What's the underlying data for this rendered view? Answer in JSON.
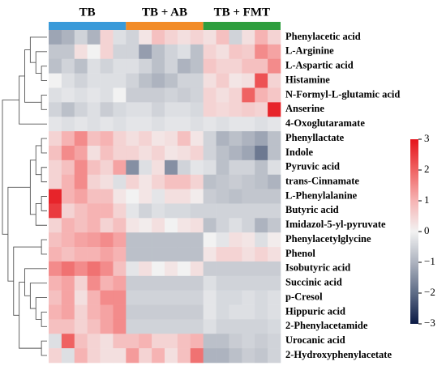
{
  "chart_data": {
    "type": "heatmap",
    "groups": [
      {
        "name": "TB",
        "color": "#3a9ad9"
      },
      {
        "name": "TB + AB",
        "color": "#f28c28"
      },
      {
        "name": "TB + FMT",
        "color": "#2e9e3e"
      }
    ],
    "rows": [
      "Phenylacetic acid",
      "L-Arginine",
      "L-Aspartic acid",
      "Histamine",
      "N-Formyl-L-glutamic acid",
      "Anserine",
      "4-Oxoglutaramate",
      "Phenyllactate",
      "Indole",
      "Pyruvic acid",
      "trans-Cinnamate",
      "L-Phenylalanine",
      "Butyric acid",
      "Imidazol-5-yl-pyruvate",
      "Phenylacetylglycine",
      "Phenol",
      "Isobutyric acid",
      "Succinic acid",
      "p-Cresol",
      "Hippuric acid",
      "2-Phenylacetamide",
      "Urocanic acid",
      "2-Hydroxyphenylacetate"
    ],
    "values": [
      [
        -1.2,
        -1,
        -0.5,
        -1,
        0.5,
        -0.3,
        -0.5,
        0.2,
        0.8,
        0.5,
        0.3,
        0.5,
        0.3,
        0.8,
        -0.5,
        0.3,
        1,
        0.5
      ],
      [
        -0.7,
        -0.7,
        0.3,
        0,
        0.5,
        -0.5,
        -0.5,
        -1.3,
        -0.8,
        -0.5,
        -0.3,
        -0.8,
        0.5,
        0.3,
        0.7,
        0.6,
        1.5,
        1.2
      ],
      [
        -0.8,
        -0.5,
        -0.8,
        -0.3,
        -0.5,
        -0.3,
        -0.3,
        -0.5,
        -0.8,
        -0.5,
        -1,
        -0.8,
        0.7,
        0.5,
        0.5,
        0.8,
        0.8,
        1.5
      ],
      [
        0,
        -0.3,
        -0.5,
        -0.3,
        -0.3,
        -0.3,
        -0.5,
        -0.8,
        -1,
        -0.8,
        -0.5,
        -0.5,
        0.3,
        0.6,
        0.2,
        0.3,
        2.2,
        0.5
      ],
      [
        -0.3,
        -0.2,
        -0.3,
        -0.2,
        -0.3,
        0,
        -0.6,
        -0.6,
        -0.6,
        -0.5,
        -0.6,
        -0.5,
        0.5,
        0.3,
        0.5,
        2,
        1,
        0.7
      ],
      [
        -0.5,
        -0.8,
        -0.5,
        -0.3,
        -0.6,
        -0.4,
        -0.3,
        -0.3,
        -0.5,
        -0.3,
        -0.3,
        -0.4,
        0.5,
        0.4,
        0.5,
        0.6,
        0.5,
        2.8
      ],
      [
        -0.2,
        -0.3,
        -0.2,
        -0.3,
        -0.2,
        -0.3,
        -0.2,
        -0.2,
        -0.3,
        -0.2,
        -0.2,
        -0.3,
        -0.2,
        -0.3,
        -0.2,
        -0.2,
        -0.3,
        -0.2
      ],
      [
        0.5,
        1,
        1.5,
        0.8,
        1,
        0.5,
        0.3,
        0.5,
        0.2,
        0.3,
        0.8,
        0.2,
        -0.5,
        -1,
        -0.8,
        -1,
        -1.2,
        -0.8
      ],
      [
        0.8,
        1.5,
        1.2,
        0.3,
        0.8,
        0.5,
        0.5,
        0.3,
        0.5,
        0.2,
        0.3,
        0.5,
        -0.5,
        -0.8,
        -1,
        -1.2,
        -1.8,
        -0.8
      ],
      [
        0.5,
        0.8,
        1.5,
        0.8,
        0.5,
        1.2,
        -1.5,
        -0.3,
        0.3,
        -1.5,
        -0.5,
        -0.2,
        -0.3,
        -0.8,
        -0.5,
        -0.5,
        -0.8,
        -0.3
      ],
      [
        0.5,
        1,
        1.5,
        0.5,
        0.3,
        -0.3,
        0.5,
        0.2,
        0.5,
        0.8,
        0.8,
        0.5,
        -0.8,
        -0.7,
        -0.6,
        -0.7,
        -0.8,
        -1
      ],
      [
        2.8,
        1,
        1.2,
        0.8,
        0.8,
        0.2,
        0,
        0.2,
        -0.2,
        0.3,
        0.3,
        0.1,
        -0.6,
        -0.7,
        -0.8,
        -0.7,
        -0.7,
        -0.7
      ],
      [
        2.5,
        0.5,
        0.8,
        1,
        1,
        0.5,
        -0.2,
        -0.5,
        -0.3,
        -0.4,
        -0.4,
        -0.5,
        -0.5,
        -0.5,
        -0.5,
        -0.5,
        -0.5,
        -0.5
      ],
      [
        0.5,
        1,
        0.8,
        1,
        0.5,
        0.8,
        0.2,
        0.1,
        0.3,
        0,
        0.2,
        0.3,
        -0.8,
        -0.5,
        -0.3,
        -0.5,
        -1,
        -0.7
      ],
      [
        0.8,
        1,
        1.2,
        1.3,
        1.5,
        1.2,
        -0.8,
        -0.8,
        -0.8,
        -0.8,
        -0.8,
        -0.8,
        0,
        -0.2,
        0.3,
        0.2,
        -0.3,
        0.1
      ],
      [
        1,
        0.8,
        1,
        1,
        1.2,
        1,
        -0.8,
        -0.8,
        -0.8,
        -0.8,
        -0.8,
        -0.8,
        0.2,
        0.5,
        0.5,
        0.3,
        0.5,
        0.3
      ],
      [
        1.5,
        1.8,
        1.5,
        1.8,
        1.5,
        0.8,
        -0.2,
        0.3,
        0,
        0.2,
        0,
        0.3,
        -0.6,
        -0.6,
        -0.6,
        -0.6,
        -0.6,
        -0.6
      ],
      [
        1,
        1.2,
        0.5,
        1.5,
        1,
        1.2,
        -0.6,
        -0.6,
        -0.6,
        -0.6,
        -0.6,
        -0.6,
        -0.3,
        -0.5,
        -0.5,
        -0.5,
        -0.5,
        -0.5
      ],
      [
        0.8,
        1.2,
        0.3,
        1,
        1.5,
        1.5,
        -0.5,
        -0.5,
        -0.5,
        -0.5,
        -0.5,
        -0.5,
        -0.2,
        -0.4,
        -0.4,
        -0.3,
        -0.4,
        -0.3
      ],
      [
        1,
        1.2,
        0.5,
        1,
        1.2,
        1.5,
        -0.6,
        -0.6,
        -0.6,
        -0.6,
        -0.6,
        -0.6,
        -0.2,
        -0.4,
        -0.3,
        -0.3,
        -0.4,
        -0.3
      ],
      [
        0.8,
        0.8,
        0.5,
        0.8,
        1.2,
        1.5,
        -0.5,
        -0.5,
        -0.5,
        -0.5,
        -0.5,
        -0.5,
        -0.3,
        -0.5,
        -0.5,
        -0.5,
        -0.5,
        -0.4
      ],
      [
        -0.3,
        2,
        0.8,
        0.5,
        0.3,
        0.8,
        0.8,
        1,
        0.5,
        0.5,
        0.8,
        1,
        -0.8,
        -0.8,
        -0.6,
        -0.5,
        -0.6,
        -0.5
      ],
      [
        0.5,
        -0.3,
        1,
        0.5,
        0.3,
        0.3,
        1.3,
        0.5,
        1,
        0.3,
        0.8,
        1.8,
        -1,
        -1,
        -0.8,
        -0.6,
        -0.7,
        -0.5
      ]
    ],
    "colorscale": [
      "#0b1a45",
      "#5d6b86",
      "#adb3bf",
      "#f2f2f2",
      "#f6b3b3",
      "#ef6262",
      "#e5141c"
    ],
    "zlim": [
      -3,
      3
    ],
    "zticks": [
      3,
      2,
      1,
      0,
      {
        "value": -1,
        "label": "−1"
      },
      {
        "value": -2,
        "label": "−2"
      },
      {
        "value": -3,
        "label": "−3"
      }
    ]
  }
}
